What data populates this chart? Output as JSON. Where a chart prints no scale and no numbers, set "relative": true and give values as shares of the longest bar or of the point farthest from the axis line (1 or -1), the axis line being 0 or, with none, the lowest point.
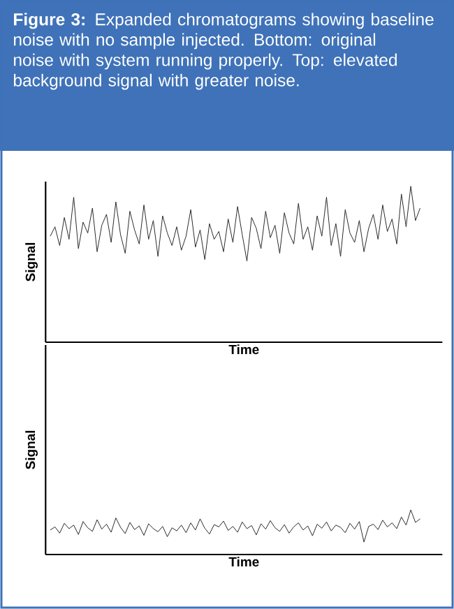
{
  "chart_data": [
    {
      "type": "line",
      "relative": true,
      "title": "**Figure 3:** Expanded chromatograms showing baseline noise with no sample injected. Bottom: original noise with system running properly. Top: elevated background signal with greater noise.",
      "xlabel": "Time",
      "ylabel": "Signal",
      "color": "#2b2b2b",
      "categories": [
        null,
        null,
        null,
        null,
        null,
        null,
        null,
        null,
        null,
        null,
        null,
        null,
        null,
        null,
        null,
        null,
        null,
        null,
        null,
        null,
        null,
        null,
        null,
        null,
        null,
        null,
        null,
        null,
        null,
        null,
        null,
        null,
        null,
        null,
        null,
        null,
        null,
        null,
        null,
        null,
        null,
        null,
        null,
        null,
        null,
        null,
        null,
        null,
        null,
        null,
        null,
        null,
        null,
        null,
        null,
        null,
        null,
        null,
        null,
        null,
        null,
        null,
        null,
        null,
        null,
        null,
        null,
        null,
        null,
        null,
        null,
        null,
        null,
        null,
        null,
        null,
        null,
        null,
        null,
        null
      ],
      "values": [
        0.68,
        0.74,
        0.62,
        0.8,
        0.66,
        0.93,
        0.6,
        0.77,
        0.7,
        0.86,
        0.58,
        0.75,
        0.82,
        0.64,
        0.9,
        0.69,
        0.57,
        0.84,
        0.72,
        0.63,
        0.88,
        0.66,
        0.78,
        0.55,
        0.81,
        0.7,
        0.62,
        0.74,
        0.59,
        0.68,
        0.85,
        0.61,
        0.72,
        0.53,
        0.76,
        0.66,
        0.71,
        0.58,
        0.79,
        0.64,
        0.87,
        0.69,
        0.52,
        0.8,
        0.73,
        0.6,
        0.84,
        0.67,
        0.75,
        0.57,
        0.83,
        0.7,
        0.63,
        0.89,
        0.66,
        0.74,
        0.59,
        0.81,
        0.68,
        0.93,
        0.62,
        0.76,
        0.55,
        0.85,
        0.7,
        0.64,
        0.78,
        0.58,
        0.73,
        0.82,
        0.66,
        0.88,
        0.71,
        0.79,
        0.63,
        0.95,
        0.74,
        1.0,
        0.78,
        0.86
      ]
    },
    {
      "type": "line",
      "relative": true,
      "xlabel": "Time",
      "ylabel": "Signal",
      "color": "#2b2b2b",
      "categories": [
        null,
        null,
        null,
        null,
        null,
        null,
        null,
        null,
        null,
        null,
        null,
        null,
        null,
        null,
        null,
        null,
        null,
        null,
        null,
        null,
        null,
        null,
        null,
        null,
        null,
        null,
        null,
        null,
        null,
        null,
        null,
        null,
        null,
        null,
        null,
        null,
        null,
        null,
        null,
        null,
        null,
        null,
        null,
        null,
        null,
        null,
        null,
        null,
        null,
        null,
        null,
        null,
        null,
        null,
        null,
        null,
        null,
        null,
        null,
        null,
        null,
        null,
        null,
        null,
        null,
        null,
        null,
        null,
        null,
        null,
        null,
        null,
        null,
        null,
        null,
        null,
        null,
        null,
        null,
        null
      ],
      "values": [
        0.55,
        0.62,
        0.48,
        0.7,
        0.58,
        0.66,
        0.45,
        0.74,
        0.6,
        0.52,
        0.78,
        0.57,
        0.68,
        0.5,
        0.82,
        0.61,
        0.47,
        0.72,
        0.56,
        0.64,
        0.43,
        0.69,
        0.58,
        0.51,
        0.63,
        0.4,
        0.6,
        0.53,
        0.66,
        0.49,
        0.71,
        0.55,
        0.8,
        0.59,
        0.46,
        0.67,
        0.62,
        0.75,
        0.54,
        0.63,
        0.5,
        0.73,
        0.58,
        0.65,
        0.44,
        0.69,
        0.57,
        0.76,
        0.6,
        0.52,
        0.67,
        0.48,
        0.62,
        0.71,
        0.55,
        0.64,
        0.42,
        0.68,
        0.59,
        0.73,
        0.53,
        0.66,
        0.61,
        0.49,
        0.7,
        0.57,
        0.74,
        0.28,
        0.63,
        0.68,
        0.56,
        0.77,
        0.62,
        0.71,
        0.58,
        0.84,
        0.66,
        1.0,
        0.72,
        0.8
      ]
    }
  ]
}
